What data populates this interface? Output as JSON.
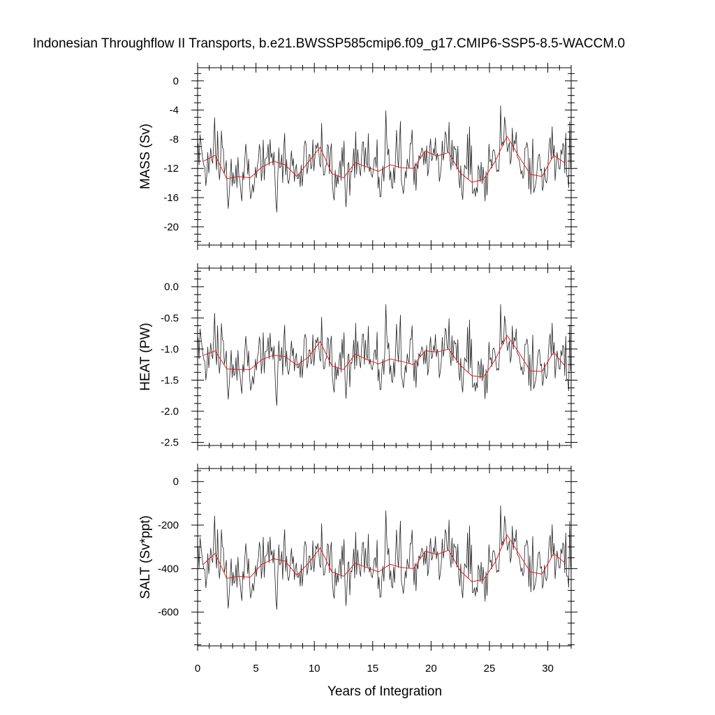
{
  "figure": {
    "title": "Indonesian Throughflow II Transports, b.e21.BWSSP585cmip6.f09_g17.CMIP6-SSP5-8.5-WACCM.0",
    "xlabel": "Years of Integration",
    "line_colors": {
      "monthly": "#222222",
      "annual_mean": "#e31a1c"
    }
  },
  "chart_data": [
    {
      "type": "line",
      "panel": "top",
      "ylabel": "MASS (Sv)",
      "xlim": [
        0,
        32
      ],
      "ylim": [
        -22.5,
        1.8
      ],
      "xticks": [
        0,
        5,
        10,
        15,
        20,
        25,
        30
      ],
      "yticks": [
        0,
        -4,
        -8,
        -12,
        -16,
        -20
      ],
      "ytick_labels": [
        "0",
        "-4",
        "-8",
        "-12",
        "-16",
        "-20"
      ],
      "annual_mean": {
        "x": [
          0.5,
          1.5,
          2.5,
          3.5,
          4.5,
          5.5,
          6.5,
          7.5,
          8.5,
          9.5,
          10.5,
          11.5,
          12.5,
          13.5,
          14.5,
          15.5,
          16.5,
          17.5,
          18.5,
          19.5,
          20.5,
          21.5,
          22.5,
          23.5,
          24.5,
          25.5,
          26.5,
          27.5,
          28.5,
          29.5,
          30.5,
          31.5
        ],
        "y": [
          -11.0,
          -10.2,
          -13.4,
          -13.1,
          -13.3,
          -11.8,
          -11.0,
          -11.5,
          -13.1,
          -11.1,
          -9.1,
          -12.7,
          -13.3,
          -11.2,
          -11.8,
          -12.4,
          -11.5,
          -11.9,
          -12.0,
          -9.6,
          -10.3,
          -9.8,
          -12.6,
          -13.9,
          -13.5,
          -11.0,
          -7.6,
          -10.3,
          -12.8,
          -13.1,
          -10.2,
          -11.3
        ]
      }
    },
    {
      "type": "line",
      "panel": "middle",
      "ylabel": "HEAT (PW)",
      "xlim": [
        0,
        32
      ],
      "ylim": [
        -2.55,
        0.3
      ],
      "xticks": [
        0,
        5,
        10,
        15,
        20,
        25,
        30
      ],
      "yticks": [
        0.0,
        -0.5,
        -1.0,
        -1.5,
        -2.0,
        -2.5
      ],
      "ytick_labels": [
        "0.0",
        "-0.5",
        "-1.0",
        "-1.5",
        "-2.0",
        "-2.5"
      ],
      "annual_mean": {
        "x": [
          0.5,
          1.5,
          2.5,
          3.5,
          4.5,
          5.5,
          6.5,
          7.5,
          8.5,
          9.5,
          10.5,
          11.5,
          12.5,
          13.5,
          14.5,
          15.5,
          16.5,
          17.5,
          18.5,
          19.5,
          20.5,
          21.5,
          22.5,
          23.5,
          24.5,
          25.5,
          26.5,
          27.5,
          28.5,
          29.5,
          30.5,
          31.5
        ],
        "y": [
          -1.1,
          -1.03,
          -1.32,
          -1.33,
          -1.33,
          -1.17,
          -1.1,
          -1.12,
          -1.26,
          -1.13,
          -0.88,
          -1.27,
          -1.33,
          -1.08,
          -1.17,
          -1.24,
          -1.16,
          -1.2,
          -1.25,
          -1.03,
          -1.05,
          -1.0,
          -1.26,
          -1.43,
          -1.45,
          -1.17,
          -0.78,
          -1.05,
          -1.35,
          -1.36,
          -1.05,
          -1.28
        ]
      }
    },
    {
      "type": "line",
      "panel": "bottom",
      "ylabel": "SALT (Sv*ppt)",
      "xlim": [
        0,
        32
      ],
      "ylim": [
        -755,
        60
      ],
      "xticks": [
        0,
        5,
        10,
        15,
        20,
        25,
        30
      ],
      "xtick_labels": [
        "0",
        "5",
        "10",
        "15",
        "20",
        "25",
        "30"
      ],
      "yticks": [
        0,
        -200,
        -400,
        -600
      ],
      "ytick_labels": [
        "0",
        "-200",
        "-400",
        "-600"
      ],
      "annual_mean": {
        "x": [
          0.5,
          1.5,
          2.5,
          3.5,
          4.5,
          5.5,
          6.5,
          7.5,
          8.5,
          9.5,
          10.5,
          11.5,
          12.5,
          13.5,
          14.5,
          15.5,
          16.5,
          17.5,
          18.5,
          19.5,
          20.5,
          21.5,
          22.5,
          23.5,
          24.5,
          25.5,
          26.5,
          27.5,
          28.5,
          29.5,
          30.5,
          31.5
        ],
        "y": [
          -380,
          -330,
          -445,
          -435,
          -440,
          -380,
          -355,
          -365,
          -430,
          -375,
          -305,
          -415,
          -435,
          -375,
          -395,
          -415,
          -380,
          -395,
          -400,
          -320,
          -335,
          -315,
          -410,
          -460,
          -450,
          -370,
          -245,
          -330,
          -415,
          -425,
          -330,
          -375
        ]
      }
    }
  ]
}
